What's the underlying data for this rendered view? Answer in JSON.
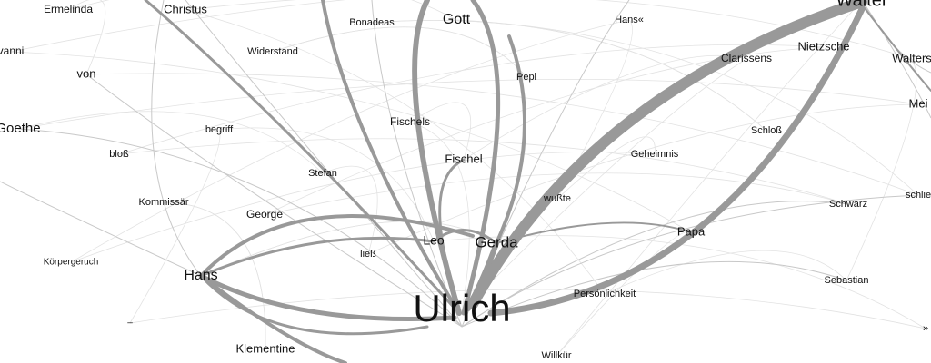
{
  "nodes": [
    {
      "label": "Ermelinda"
    },
    {
      "label": "Christus"
    },
    {
      "label": "Bonadeas"
    },
    {
      "label": "Gott"
    },
    {
      "label": "Hans«"
    },
    {
      "label": "Walter"
    },
    {
      "label": "vanni"
    },
    {
      "label": "Widerstand"
    },
    {
      "label": "Clarissens"
    },
    {
      "label": "Nietzsche"
    },
    {
      "label": "Walters"
    },
    {
      "label": "von"
    },
    {
      "label": "Pepi"
    },
    {
      "label": "Mei"
    },
    {
      "label": "Goethe"
    },
    {
      "label": "begriff"
    },
    {
      "label": "Fischels"
    },
    {
      "label": "Schloß"
    },
    {
      "label": "bloß"
    },
    {
      "label": "Fischel"
    },
    {
      "label": "Geheimnis"
    },
    {
      "label": "Stefan"
    },
    {
      "label": "Kommissär"
    },
    {
      "label": "wußte"
    },
    {
      "label": "schlie"
    },
    {
      "label": "Schwarz"
    },
    {
      "label": "George"
    },
    {
      "label": "Gerda"
    },
    {
      "label": "Leo"
    },
    {
      "label": "Papa"
    },
    {
      "label": "ließ"
    },
    {
      "label": "Körpergeruch"
    },
    {
      "label": "Hans"
    },
    {
      "label": "Sebastian"
    },
    {
      "label": "Persönlichkeit"
    },
    {
      "label": "Ulrich"
    },
    {
      "label": "–"
    },
    {
      "label": "Klementine"
    },
    {
      "label": "Willkür"
    },
    {
      "label": "»"
    }
  ]
}
